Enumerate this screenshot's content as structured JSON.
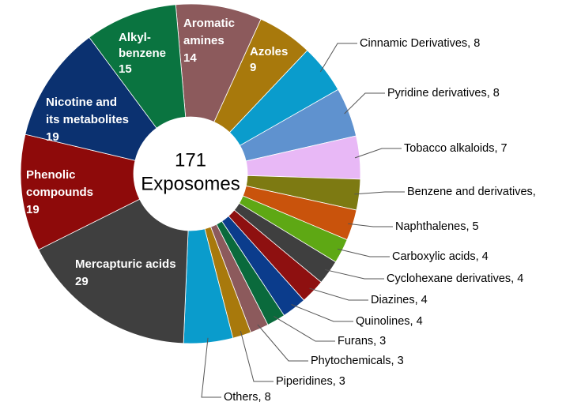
{
  "chart_data": {
    "type": "donut",
    "center_text": [
      "171",
      "Exposomes"
    ],
    "labels": [
      [
        "Aromatic",
        "amines",
        "14"
      ],
      [
        "Azoles",
        "9"
      ],
      [
        "Cinnamic Derivatives, 8"
      ],
      [
        "Pyridine derivatives, 8"
      ],
      [
        "Tobacco alkaloids, 7"
      ],
      [
        "Benzene and derivatives,"
      ],
      [
        "Naphthalenes, 5"
      ],
      [
        "Carboxylic acids, 4"
      ],
      [
        "Cyclohexane derivatives, 4"
      ],
      [
        "Diazines, 4"
      ],
      [
        "Quinolines, 4"
      ],
      [
        "Furans, 3"
      ],
      [
        "Phytochemicals, 3"
      ],
      [
        "Piperidines, 3"
      ],
      [
        "Others, 8"
      ],
      [
        "Mercapturic acids",
        "29"
      ],
      [
        "Phenolic",
        "compounds",
        "19"
      ],
      [
        "Nicotine and",
        "its metabolites",
        "19"
      ],
      [
        "Alkyl-",
        "benzene",
        "15"
      ]
    ],
    "values": [
      14,
      9,
      8,
      8,
      7,
      5,
      5,
      4,
      4,
      4,
      4,
      3,
      3,
      3,
      8,
      29,
      19,
      19,
      15
    ],
    "colors": [
      "#8c5a5c",
      "#a8790c",
      "#0a9ccc",
      "#5f92cf",
      "#e8b8f6",
      "#7d7a12",
      "#c9530c",
      "#5ea814",
      "#3f3f3f",
      "#8e1010",
      "#0b3c8c",
      "#0a6a3c",
      "#8c5a5c",
      "#a8790c",
      "#0a9ccc",
      "#3f3f3f",
      "#8e0a0a",
      "#0b3170",
      "#0a7440"
    ]
  }
}
